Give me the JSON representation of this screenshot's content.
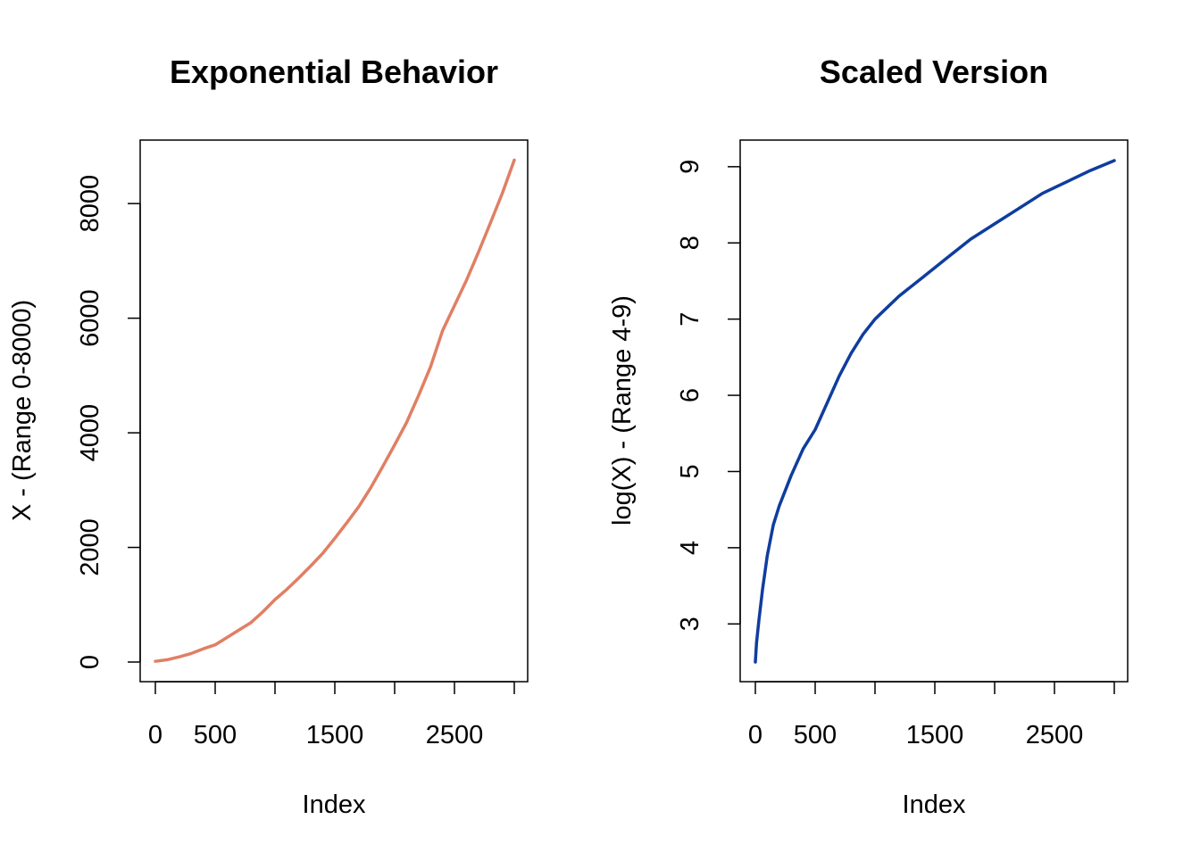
{
  "chart_data": [
    {
      "type": "line",
      "title": "Exponential Behavior",
      "xlabel": "Index",
      "ylabel": "X - (Range 0-8000)",
      "xlim": [
        0,
        3000
      ],
      "ylim": [
        0,
        8750
      ],
      "xticks": [
        0,
        500,
        1000,
        1500,
        2000,
        2500,
        3000
      ],
      "xtick_labels": [
        "0",
        "500",
        "",
        "1500",
        "",
        "2500",
        ""
      ],
      "yticks": [
        0,
        2000,
        4000,
        6000,
        8000
      ],
      "ytick_labels": [
        "0",
        "2000",
        "4000",
        "6000",
        "8000"
      ],
      "grid": false,
      "color": "#E07F64",
      "series": [
        {
          "x": [
            0,
            100,
            200,
            300,
            400,
            500,
            600,
            700,
            800,
            900,
            1000,
            1100,
            1200,
            1300,
            1400,
            1500,
            1600,
            1700,
            1800,
            1900,
            2000,
            2100,
            2200,
            2300,
            2400,
            2500,
            2600,
            2700,
            2800,
            2900,
            3000
          ],
          "y": [
            12,
            40,
            90,
            150,
            230,
            300,
            430,
            560,
            690,
            880,
            1090,
            1270,
            1470,
            1680,
            1900,
            2160,
            2430,
            2710,
            3040,
            3410,
            3790,
            4180,
            4650,
            5150,
            5780,
            6220,
            6660,
            7150,
            7660,
            8180,
            8760
          ]
        }
      ]
    },
    {
      "type": "line",
      "title": "Scaled Version",
      "xlabel": "Index",
      "ylabel": "log(X) - (Range 4-9)",
      "xlim": [
        0,
        3000
      ],
      "ylim": [
        2.5,
        9.08
      ],
      "xticks": [
        0,
        500,
        1000,
        1500,
        2000,
        2500,
        3000
      ],
      "xtick_labels": [
        "0",
        "500",
        "",
        "1500",
        "",
        "2500",
        ""
      ],
      "yticks": [
        3,
        4,
        5,
        6,
        7,
        8,
        9
      ],
      "ytick_labels": [
        "3",
        "4",
        "5",
        "6",
        "7",
        "8",
        "9"
      ],
      "grid": false,
      "color": "#0F3D9E",
      "series": [
        {
          "x": [
            0,
            10,
            30,
            60,
            100,
            150,
            200,
            250,
            300,
            400,
            500,
            600,
            700,
            800,
            900,
            1000,
            1200,
            1400,
            1600,
            1800,
            2000,
            2200,
            2400,
            2600,
            2800,
            3000
          ],
          "y": [
            2.5,
            2.75,
            3.05,
            3.45,
            3.9,
            4.3,
            4.55,
            4.75,
            4.95,
            5.3,
            5.55,
            5.9,
            6.25,
            6.55,
            6.8,
            7.0,
            7.3,
            7.55,
            7.8,
            8.05,
            8.25,
            8.45,
            8.65,
            8.8,
            8.95,
            9.08
          ]
        }
      ]
    }
  ]
}
